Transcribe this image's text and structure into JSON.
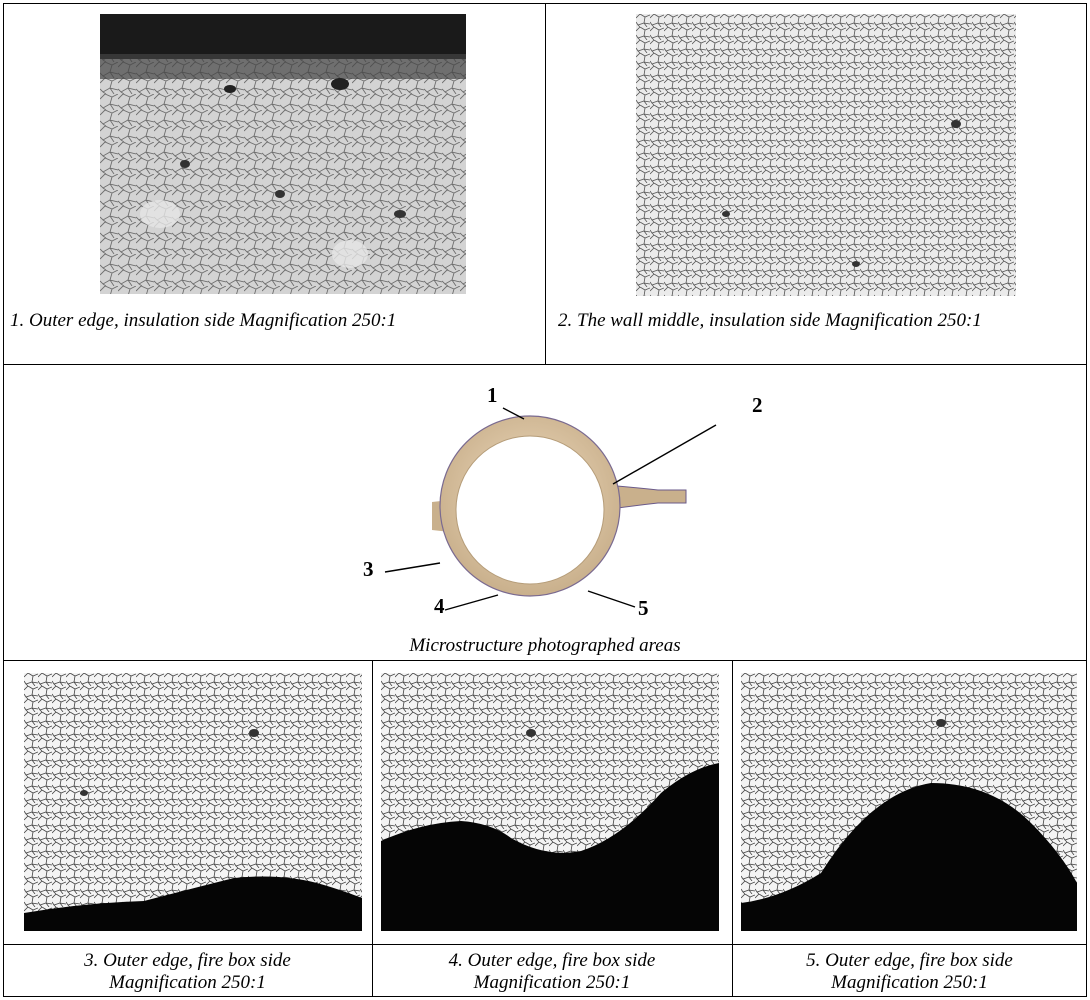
{
  "figure": {
    "top_left_caption": "1. Outer edge, insulation side Magnification 250:1",
    "top_right_caption": "2. The wall middle, insulation side Magnification 250:1",
    "middle_caption": "Microstructure photographed areas",
    "ring_labels": [
      "1",
      "2",
      "3",
      "4",
      "5"
    ],
    "bottom_captions": [
      {
        "line1": "3. Outer edge, fire box side",
        "line2": "Magnification 250:1"
      },
      {
        "line1": "4. Outer edge, fire box side",
        "line2": "Magnification 250:1"
      },
      {
        "line1": "5. Outer edge, fire box side",
        "line2": "Magnification 250:1"
      }
    ]
  }
}
